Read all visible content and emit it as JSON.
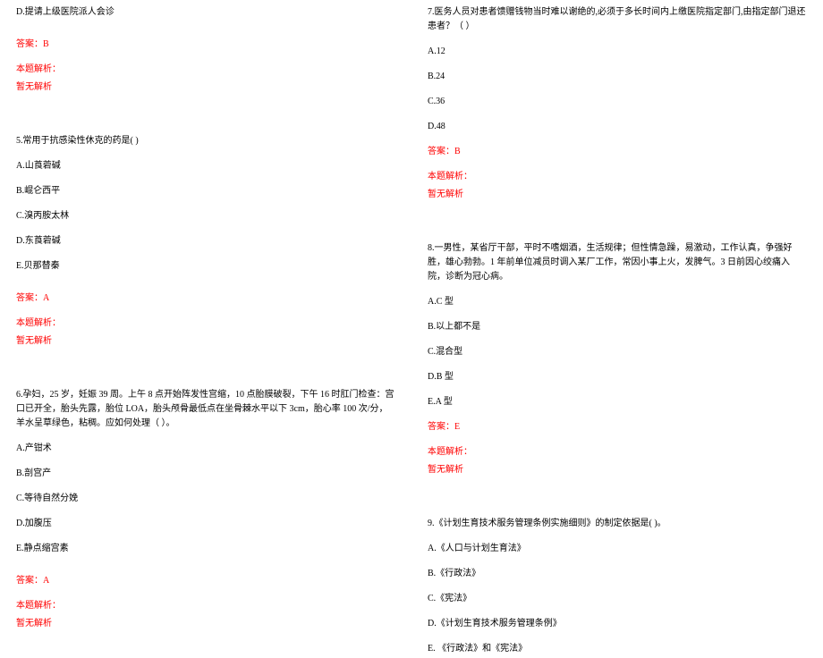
{
  "colors": {
    "text": "#000000",
    "accent": "#ff0000",
    "bg": "#ffffff"
  },
  "typography": {
    "font_family": "SimSun",
    "font_size_pt": 10,
    "line_height": 1.6
  },
  "left": {
    "q4_optD": "D.提请上级医院派人会诊",
    "q4_answer": "答案：B",
    "q4_parse_label": "本题解析：",
    "q4_parse_body": "暂无解析",
    "q5_stem": "5.常用于抗感染性休克的药是(   )",
    "q5_A": "A.山莨菪碱",
    "q5_B": "B.崐仑西平",
    "q5_C": "C.溴丙胺太林",
    "q5_D": "D.东莨菪碱",
    "q5_E": "E.贝那替秦",
    "q5_answer": "答案：A",
    "q5_parse_label": "本题解析：",
    "q5_parse_body": "暂无解析",
    "q6_stem": "6.孕妇，25 岁，妊娠 39 周。上午 8 点开始阵发性宫缩，10 点胎膜破裂，下午 16 时肛门检查：宫口已开全，胎头先露，胎位 LOA，胎头颅骨最低点在坐骨棘水平以下 3cm，胎心率 100 次/分，羊水呈草绿色，粘稠。应如何处理（   ）。",
    "q6_A": "A.产钳术",
    "q6_B": "B.剖宫产",
    "q6_C": "C.等待自然分娩",
    "q6_D": "D.加腹压",
    "q6_E": "E.静点缩宫素",
    "q6_answer": "答案：A",
    "q6_parse_label": "本题解析：",
    "q6_parse_body": "暂无解析"
  },
  "right": {
    "q7_stem": "7.医务人员对患者馈赠钱物当时难以谢绝的,必须于多长时间内上缴医院指定部门,由指定部门退还患者？（   ）",
    "q7_A": "A.12",
    "q7_B": "B.24",
    "q7_C": "C.36",
    "q7_D": "D.48",
    "q7_answer": "答案：B",
    "q7_parse_label": "本题解析：",
    "q7_parse_body": "暂无解析",
    "q8_stem": "8.一男性，某省厅干部，平时不嗜烟酒，生活规律；但性情急躁，易激动，工作认真，争强好胜，雄心勃勃。1 年前单位减员时调入某厂工作，常因小事上火，发脾气。3 日前因心绞痛入院，诊断为冠心病。",
    "q8_A": "A.C 型",
    "q8_B": "B.以上都不是",
    "q8_C": "C.混合型",
    "q8_D": "D.B 型",
    "q8_E": "E.A 型",
    "q8_answer": "答案：E",
    "q8_parse_label": "本题解析：",
    "q8_parse_body": "暂无解析",
    "q9_stem": "9.《计划生育技术服务管理条例实施细则》的制定依据是(   )。",
    "q9_A": "A.《人口与计划生育法》",
    "q9_B": "B.《行政法》",
    "q9_C": "C.《宪法》",
    "q9_D": "D.《计划生育技术服务管理条例》",
    "q9_E": "E. 《行政法》和《宪法》"
  }
}
